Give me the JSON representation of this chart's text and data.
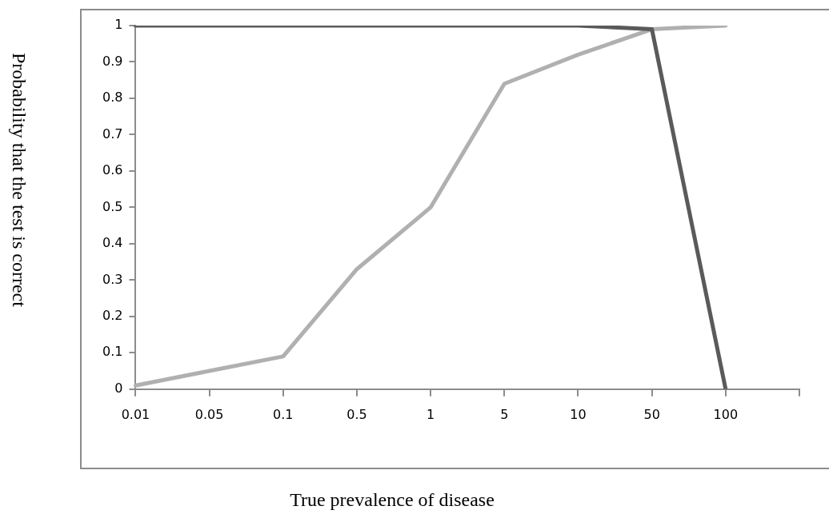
{
  "chart_data": {
    "type": "line",
    "xlabel": "True prevalence of disease",
    "ylabel": "Probability that the test is correct",
    "categories": [
      "0.01",
      "0.05",
      "0.1",
      "0.5",
      "1",
      "5",
      "10",
      "50",
      "100",
      null
    ],
    "series": [
      {
        "color": "#5a5a5a",
        "values": [
          1,
          1,
          1,
          1,
          1,
          1,
          1,
          0.99,
          0,
          null
        ]
      },
      {
        "color": "#b0b0b0",
        "values": [
          0.01,
          0.05,
          0.09,
          0.33,
          0.5,
          0.84,
          0.92,
          0.99,
          1,
          null
        ]
      }
    ],
    "ylim": [
      0,
      1
    ],
    "yticks": [
      0,
      0.1,
      0.2,
      0.3,
      0.4,
      0.5,
      0.6,
      0.7,
      0.8,
      0.9,
      1
    ],
    "grid": false,
    "legend": false,
    "marker": "none",
    "line_style": "solid"
  }
}
